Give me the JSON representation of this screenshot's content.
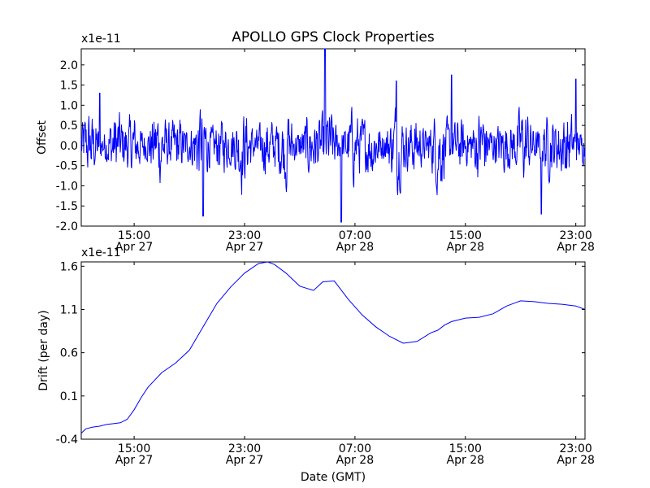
{
  "figure": {
    "title": "APOLLO GPS Clock Properties"
  },
  "chart_data": [
    {
      "type": "line",
      "title": "APOLLO GPS Clock Properties",
      "xlabel": "",
      "ylabel": "Offset",
      "multiplier": "x1e-11",
      "xlim": [
        "2011-04-27T11:10",
        "2011-04-28T23:40"
      ],
      "ylim": [
        -2.0,
        2.4
      ],
      "yticks": [
        "-2.0",
        "-1.5",
        "-1.0",
        "-0.5",
        "0.0",
        "0.5",
        "1.0",
        "1.5",
        "2.0"
      ],
      "xticks": [
        {
          "time": "15:00",
          "date": "Apr 27"
        },
        {
          "time": "23:00",
          "date": "Apr 27"
        },
        {
          "time": "07:00",
          "date": "Apr 28"
        },
        {
          "time": "15:00",
          "date": "Apr 28"
        },
        {
          "time": "23:00",
          "date": "Apr 28"
        }
      ],
      "line_color": "#0000ff",
      "noise": {
        "spikes": [
          {
            "t": "2011-04-28T04:50",
            "v": 2.4
          },
          {
            "t": "2011-04-28T06:00",
            "v": -1.9
          },
          {
            "t": "2011-04-28T10:00",
            "v": 1.6
          },
          {
            "t": "2011-04-28T14:00",
            "v": 1.75
          },
          {
            "t": "2011-04-28T23:00",
            "v": 1.65
          },
          {
            "t": "2011-04-27T20:00",
            "v": -1.75
          },
          {
            "t": "2011-04-28T20:30",
            "v": -1.7
          },
          {
            "t": "2011-04-27T12:30",
            "v": 1.3
          }
        ]
      }
    },
    {
      "type": "line",
      "title": "",
      "xlabel": "Date (GMT)",
      "ylabel": "Drift (per day)",
      "multiplier": "x1e-11",
      "xlim": [
        "2011-04-27T11:10",
        "2011-04-28T23:40"
      ],
      "ylim": [
        -0.4,
        1.65
      ],
      "yticks": [
        "-0.4",
        "0.1",
        "0.6",
        "1.1",
        "1.6"
      ],
      "xticks": [
        {
          "time": "15:00",
          "date": "Apr 27"
        },
        {
          "time": "23:00",
          "date": "Apr 27"
        },
        {
          "time": "07:00",
          "date": "Apr 28"
        },
        {
          "time": "15:00",
          "date": "Apr 28"
        },
        {
          "time": "23:00",
          "date": "Apr 28"
        }
      ],
      "line_color": "#0000ff",
      "series": [
        {
          "t": [
            "2011-04-27T11:10",
            "2011-04-27T11:30",
            "2011-04-27T12:00",
            "2011-04-27T12:30",
            "2011-04-27T13:00",
            "2011-04-27T13:30",
            "2011-04-27T14:00",
            "2011-04-27T14:30",
            "2011-04-27T15:00",
            "2011-04-27T15:30",
            "2011-04-27T16:00",
            "2011-04-27T17:00",
            "2011-04-27T18:00",
            "2011-04-27T19:00",
            "2011-04-27T20:00",
            "2011-04-27T21:00",
            "2011-04-27T22:00",
            "2011-04-27T23:00",
            "2011-04-28T00:00",
            "2011-04-28T00:40",
            "2011-04-28T01:10",
            "2011-04-28T02:00",
            "2011-04-28T03:00",
            "2011-04-28T04:00",
            "2011-04-28T04:40",
            "2011-04-28T05:30",
            "2011-04-28T06:30",
            "2011-04-28T07:30",
            "2011-04-28T08:30",
            "2011-04-28T09:30",
            "2011-04-28T10:30",
            "2011-04-28T11:30",
            "2011-04-28T12:30",
            "2011-04-28T13:00",
            "2011-04-28T13:30",
            "2011-04-28T14:00",
            "2011-04-28T15:00",
            "2011-04-28T16:00",
            "2011-04-28T17:00",
            "2011-04-28T18:00",
            "2011-04-28T19:00",
            "2011-04-28T20:00",
            "2011-04-28T20:30",
            "2011-04-28T21:00",
            "2011-04-28T22:00",
            "2011-04-28T23:00",
            "2011-04-28T23:40"
          ],
          "values": [
            -0.33,
            -0.28,
            -0.26,
            -0.25,
            -0.23,
            -0.22,
            -0.21,
            -0.17,
            -0.06,
            0.08,
            0.2,
            0.37,
            0.48,
            0.63,
            0.9,
            1.17,
            1.36,
            1.52,
            1.63,
            1.65,
            1.62,
            1.52,
            1.37,
            1.32,
            1.42,
            1.43,
            1.22,
            1.04,
            0.9,
            0.79,
            0.71,
            0.73,
            0.83,
            0.86,
            0.92,
            0.96,
            1.0,
            1.01,
            1.05,
            1.14,
            1.2,
            1.19,
            1.18,
            1.17,
            1.16,
            1.14,
            1.1
          ]
        }
      ]
    }
  ]
}
